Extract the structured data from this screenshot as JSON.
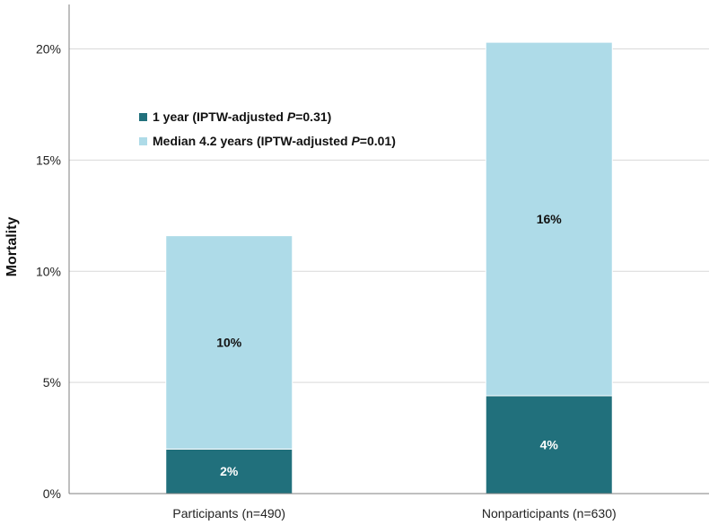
{
  "chart_data": {
    "type": "bar",
    "stacked": true,
    "categories": [
      "Participants (n=490)",
      "Nonparticipants (n=630)"
    ],
    "series": [
      {
        "name": "1 year (IPTW-adjusted P=0.31)",
        "legend_parts": [
          "1 year (IPTW-adjusted ",
          "P",
          "=0.31)"
        ],
        "values": [
          2.0,
          4.4
        ],
        "labels": [
          "2%",
          "4%"
        ],
        "color": "#21707c",
        "label_color": "#ffffff"
      },
      {
        "name": "Median 4.2 years (IPTW-adjusted P=0.01)",
        "legend_parts": [
          "Median 4.2 years (IPTW-adjusted ",
          "P",
          "=0.01)"
        ],
        "values": [
          9.6,
          15.9
        ],
        "labels": [
          "10%",
          "16%"
        ],
        "color": "#aedbe8",
        "label_color": "#111111"
      }
    ],
    "ylabel": "Mortality",
    "ylim": [
      0,
      22
    ],
    "yticks": [
      0,
      5,
      10,
      15,
      20
    ],
    "ytick_labels": [
      "0%",
      "5%",
      "10%",
      "15%",
      "20%"
    ],
    "grid": true,
    "legend_position": "top-left"
  }
}
